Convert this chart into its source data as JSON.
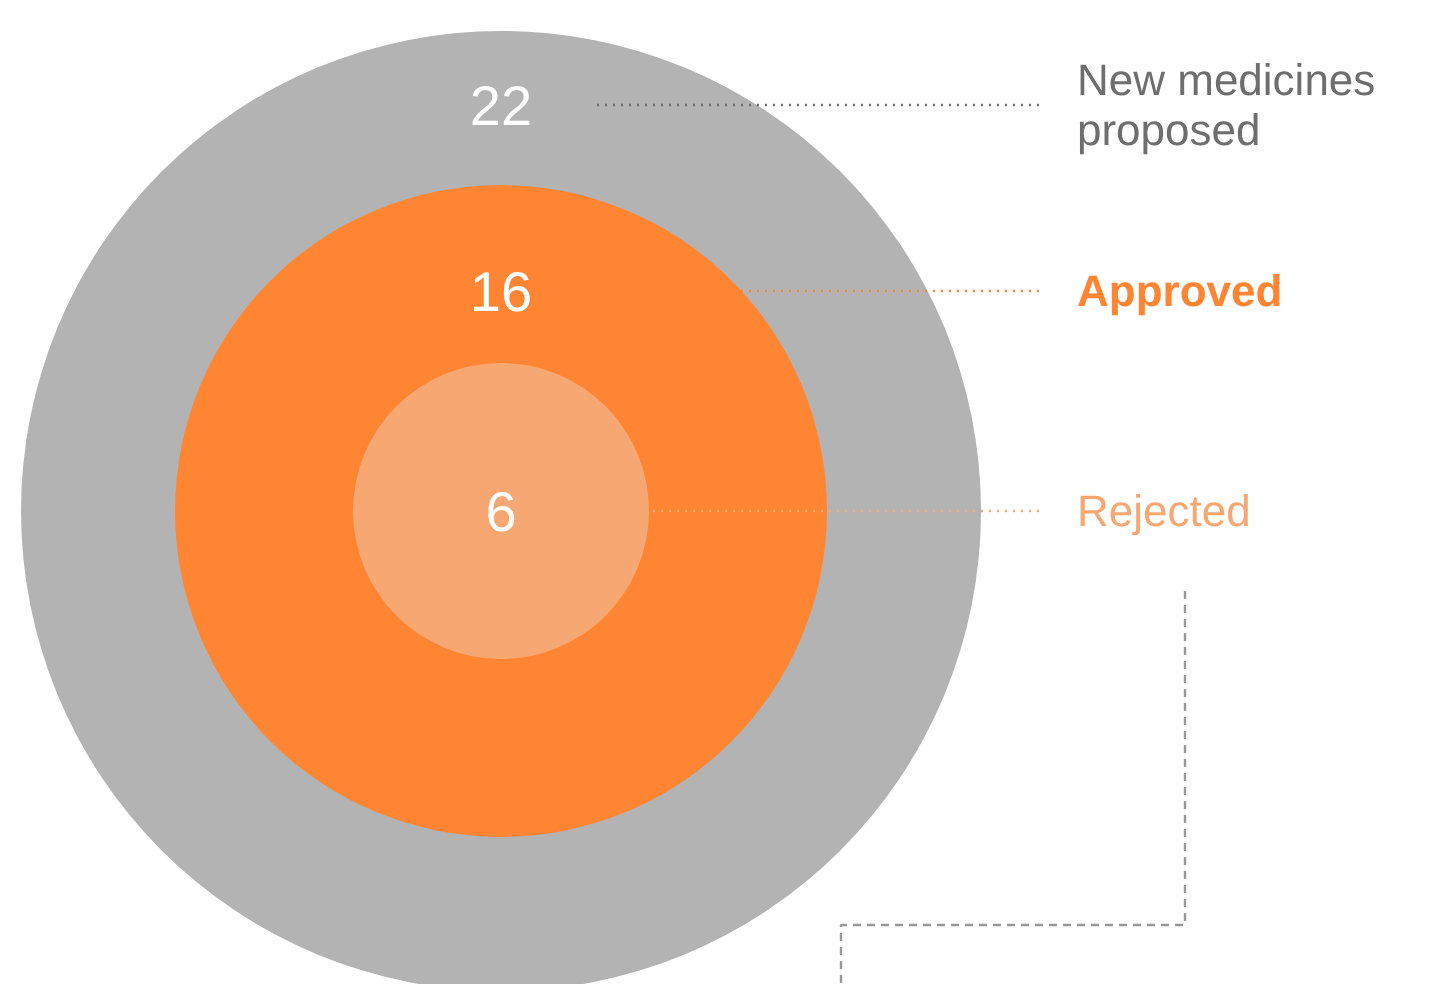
{
  "chart_data": {
    "type": "other",
    "categories": [
      "New medicines\nproposed",
      "Approved",
      "Rejected"
    ],
    "values": [
      22,
      16,
      6
    ],
    "colors": [
      "#b3b3b3",
      "#ff8533",
      "#f7a872"
    ],
    "data_labels": true
  }
}
